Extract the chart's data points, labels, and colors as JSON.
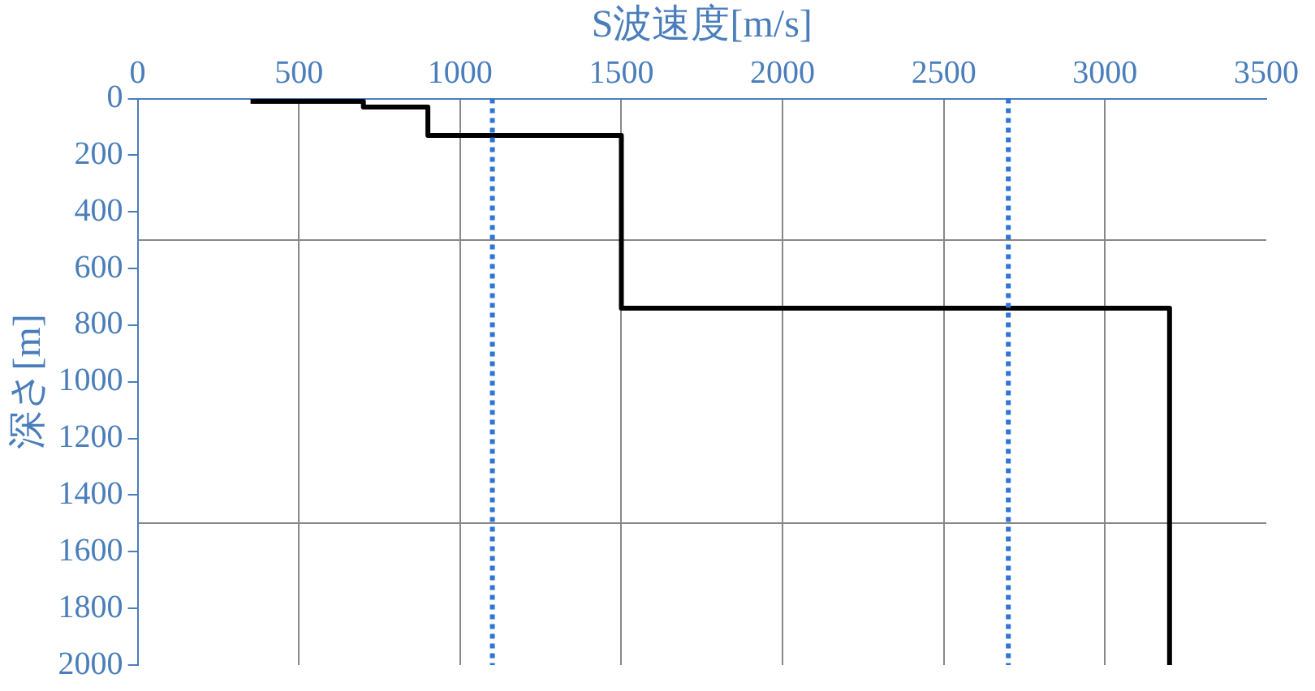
{
  "chart_data": {
    "type": "step",
    "xlabel": "S波速度[m/s]",
    "ylabel": "深さ[m]",
    "series": [
      {
        "color": "#000000",
        "x": [
          350,
          400,
          400,
          700,
          700,
          900,
          900,
          1500,
          1500,
          3200,
          3200
        ],
        "values": [
          10,
          10,
          10,
          10,
          30,
          30,
          130,
          130,
          740,
          740,
          2000
        ]
      }
    ],
    "xlim": [
      0,
      3500
    ],
    "xticks": [
      0,
      500,
      1000,
      1500,
      2000,
      2500,
      3000,
      3500
    ],
    "ylim": [
      2000,
      0
    ],
    "yticks": [
      0,
      200,
      400,
      {
        "value": 500,
        "label": null
      },
      600,
      800,
      1000,
      1200,
      1400,
      {
        "value": 1500,
        "label": null
      },
      1600,
      1800,
      2000
    ],
    "ref_lines": [
      {
        "axis": "x",
        "value": 1100,
        "color": "#2e75d6",
        "line_style": "dotted"
      },
      {
        "axis": "x",
        "value": 2700,
        "color": "#2e75d6",
        "line_style": "dotted"
      }
    ],
    "grid": true,
    "legend": false,
    "marker": "none",
    "line_style": "solid"
  }
}
